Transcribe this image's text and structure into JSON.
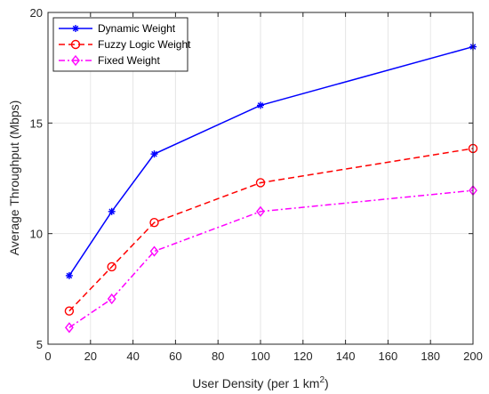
{
  "chart_data": {
    "type": "line",
    "x": [
      10,
      30,
      50,
      100,
      200
    ],
    "xlabel": "User Density (per 1 km",
    "xlabel_sup": "2",
    "xlabel_end": ")",
    "ylabel": "Average Throughput (Mbps)",
    "xlim": [
      0,
      200
    ],
    "ylim": [
      5,
      20
    ],
    "xticks": [
      0,
      20,
      40,
      60,
      80,
      100,
      120,
      140,
      160,
      180,
      200
    ],
    "yticks": [
      5,
      10,
      15,
      20
    ],
    "grid": true,
    "legend_position": "top-left",
    "series": [
      {
        "name": "Dynamic Weight",
        "values": [
          8.1,
          11.0,
          13.6,
          15.8,
          18.45
        ],
        "color": "#0000ff",
        "dash": "solid",
        "marker": "asterisk"
      },
      {
        "name": "Fuzzy Logic Weight",
        "values": [
          6.5,
          8.5,
          10.5,
          12.3,
          13.85
        ],
        "color": "#ff0000",
        "dash": "dashed",
        "marker": "circle"
      },
      {
        "name": "Fixed Weight",
        "values": [
          5.75,
          7.05,
          9.2,
          11.0,
          11.95
        ],
        "color": "#ff00ff",
        "dash": "dashdot",
        "marker": "diamond"
      }
    ]
  }
}
